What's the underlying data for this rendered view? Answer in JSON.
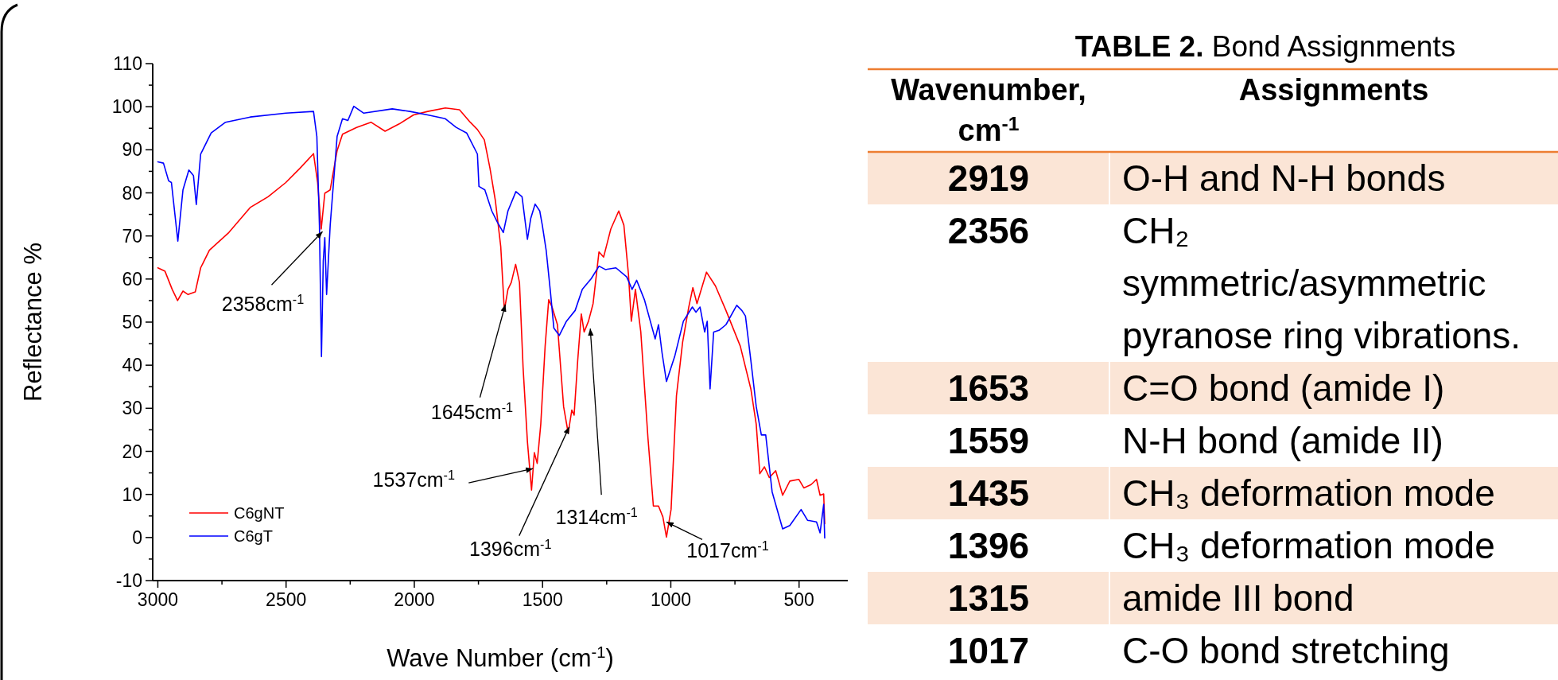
{
  "chart_data": [
    {
      "type": "line",
      "xlabel": "Wave Number (cm$^{-1}$)",
      "ylabel": "Reflectance %",
      "xlim": [
        3020,
        310
      ],
      "ylim": [
        -10,
        110
      ],
      "xticks": [
        3000,
        {
          "value": 2750,
          "label": null
        },
        2500,
        {
          "value": 2250,
          "label": null
        },
        2000,
        {
          "value": 1750,
          "label": null
        },
        1500,
        {
          "value": 1250,
          "label": null
        },
        1000,
        {
          "value": 750,
          "label": null
        },
        500
      ],
      "yticks": [
        -10,
        {
          "value": -5,
          "label": null
        },
        0,
        {
          "value": 5,
          "label": null
        },
        10,
        {
          "value": 15,
          "label": null
        },
        20,
        {
          "value": 25,
          "label": null
        },
        30,
        {
          "value": 35,
          "label": null
        },
        40,
        {
          "value": 45,
          "label": null
        },
        50,
        {
          "value": 55,
          "label": null
        },
        60,
        {
          "value": 65,
          "label": null
        },
        70,
        {
          "value": 75,
          "label": null
        },
        80,
        {
          "value": 85,
          "label": null
        },
        90,
        {
          "value": 95,
          "label": null
        },
        100,
        {
          "value": 105,
          "label": null
        },
        110
      ],
      "legend": "bottom left",
      "series": [
        {
          "name": "C6gNT",
          "color": "#ff0000",
          "x": [
            3000,
            2972,
            2944,
            2923,
            2902,
            2882,
            2854,
            2833,
            2799,
            2723,
            2640,
            2570,
            2501,
            2446,
            2393,
            2377,
            2363,
            2349,
            2328,
            2301,
            2280,
            2225,
            2169,
            2114,
            2059,
            2003,
            1948,
            1879,
            1824,
            1782,
            1754,
            1727,
            1705,
            1684,
            1663,
            1649,
            1635,
            1622,
            1605,
            1590,
            1576,
            1559,
            1543,
            1532,
            1521,
            1507,
            1490,
            1476,
            1463,
            1442,
            1418,
            1400,
            1386,
            1377,
            1363,
            1349,
            1338,
            1321,
            1303,
            1280,
            1262,
            1234,
            1203,
            1183,
            1165,
            1154,
            1138,
            1117,
            1089,
            1068,
            1048,
            1031,
            1017,
            999,
            978,
            954,
            930,
            914,
            898,
            861,
            826,
            785,
            729,
            688,
            667,
            653,
            635,
            616,
            591,
            564,
            536,
            501,
            481,
            453,
            432,
            418,
            404,
            400
          ],
          "values": [
            62.6,
            61.8,
            57.6,
            55,
            57.2,
            56.4,
            57,
            62.6,
            66.7,
            70.8,
            76.6,
            79.1,
            82.4,
            85.7,
            89.1,
            82.4,
            71.6,
            79.9,
            80.7,
            89.8,
            93.6,
            95.2,
            96.4,
            94.3,
            96,
            98.1,
            98.9,
            99.7,
            99.3,
            96.4,
            94.7,
            92.3,
            85.7,
            78.2,
            67.5,
            52.7,
            57.6,
            59.2,
            63.4,
            59.2,
            39.5,
            22.2,
            11,
            19.7,
            17.2,
            26.3,
            44.4,
            55.2,
            53.5,
            49.4,
            30.4,
            24.2,
            29.6,
            28.4,
            41.1,
            51.9,
            47.7,
            50.2,
            54.3,
            66.3,
            65.1,
            71.6,
            75.8,
            72.5,
            61,
            50.2,
            57.6,
            47.7,
            23,
            7.3,
            7.3,
            4.8,
            0.1,
            6.5,
            32.9,
            45.3,
            53.5,
            58,
            54.3,
            61.6,
            58.4,
            52.7,
            44.4,
            34.5,
            26.3,
            14.8,
            16.4,
            13.9,
            15.5,
            9.8,
            13.1,
            13.5,
            11.5,
            12.3,
            13.5,
            9.8,
            10.1,
            3.2
          ]
        },
        {
          "name": "C6gT",
          "color": "#0000ff",
          "x": [
            3000,
            2978,
            2958,
            2947,
            2922,
            2902,
            2879,
            2861,
            2850,
            2833,
            2792,
            2736,
            2640,
            2501,
            2393,
            2380,
            2370,
            2362,
            2355,
            2349,
            2342,
            2328,
            2301,
            2280,
            2259,
            2236,
            2197,
            2086,
            2017,
            1948,
            1879,
            1837,
            1796,
            1754,
            1748,
            1725,
            1698,
            1677,
            1653,
            1635,
            1604,
            1580,
            1559,
            1546,
            1529,
            1511,
            1501,
            1486,
            1469,
            1456,
            1435,
            1407,
            1373,
            1345,
            1310,
            1280,
            1255,
            1214,
            1172,
            1151,
            1133,
            1103,
            1061,
            1048,
            1034,
            1017,
            985,
            951,
            916,
            902,
            886,
            868,
            858,
            847,
            833,
            812,
            785,
            743,
            723,
            709,
            688,
            667,
            647,
            630,
            605,
            564,
            536,
            492,
            467,
            432,
            418,
            404,
            400
          ],
          "values": [
            87.2,
            86.9,
            82.8,
            82.4,
            68.8,
            80.7,
            85.3,
            84,
            77.3,
            89,
            93.9,
            96.4,
            97.6,
            98.5,
            98.9,
            93.1,
            72.5,
            42,
            64.2,
            69.6,
            56.4,
            72.5,
            93.1,
            97.2,
            96.8,
            100.1,
            98.5,
            99.5,
            98.9,
            98.1,
            97.2,
            95.2,
            93.9,
            89,
            81.5,
            80.7,
            75.8,
            73.3,
            70.8,
            75.8,
            80.3,
            79.1,
            69.2,
            74.1,
            77.4,
            75.8,
            72.5,
            66.7,
            56.8,
            48.6,
            46.9,
            50.2,
            52.7,
            57.6,
            60.1,
            63,
            62.2,
            62.6,
            60.5,
            57.6,
            59.7,
            55.2,
            46.1,
            49.4,
            42.8,
            36.2,
            42,
            50.2,
            53.5,
            52.3,
            53.5,
            47.7,
            50.2,
            34.5,
            47.7,
            48.1,
            49.4,
            53.9,
            52.7,
            51.4,
            41.1,
            30.4,
            23.8,
            23.8,
            10.6,
            2,
            2.8,
            6.5,
            4,
            3.6,
            1.1,
            7.7,
            -0.1
          ]
        }
      ],
      "annotations": [
        {
          "text": "2358cm$^{-1}$",
          "x": 2358,
          "y": 71
        },
        {
          "text": "1645cm$^{-1}$",
          "x": 1645,
          "y": 54.1
        },
        {
          "text": "1537cm$^{-1}$",
          "x": 1537,
          "y": 16
        },
        {
          "text": "1396cm$^{-1}$",
          "x": 1396,
          "y": 25.7
        },
        {
          "text": "1314cm$^{-1}$",
          "x": 1314,
          "y": 48.5
        },
        {
          "text": "1017cm$^{-1}$",
          "x": 1017,
          "y": 3.6
        }
      ]
    },
    {
      "type": "other",
      "title": "TABLE 2. Bond Assignments",
      "annotations": [
        "Wavenumber, cm$^{-1}$",
        "Assignments",
        "2919",
        "O-H and N-H bonds",
        "2356",
        "CH₂ symmetric/asymmetric pyranose ring vibrations.",
        "1653",
        "C=O bond (amide I)",
        "1559",
        "N-H bond (amide II)",
        "1435",
        "CH₃ deformation mode",
        "1396",
        "CH₃ deformation mode",
        "1315",
        "amide III bond",
        "1017",
        "C-O bond stretching"
      ]
    }
  ]
}
